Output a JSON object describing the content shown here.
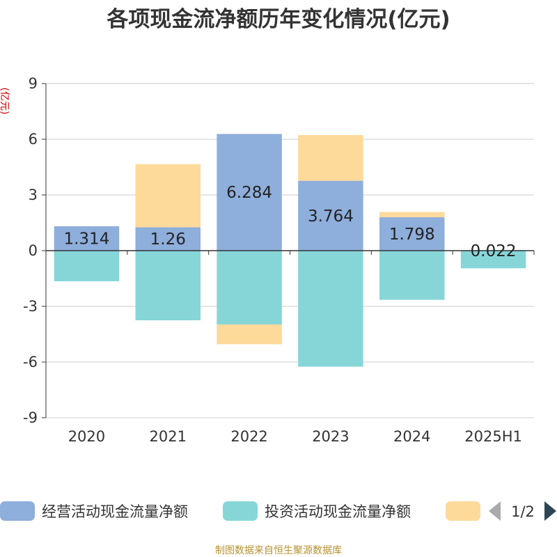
{
  "chart_data": {
    "type": "bar",
    "stacked": true,
    "title": "各项现金流净额历年变化情况(亿元)",
    "ylabel": "(亿元)",
    "xlabel": "",
    "categories": [
      "2020",
      "2021",
      "2022",
      "2023",
      "2024",
      "2025H1"
    ],
    "ylim": [
      -9,
      9
    ],
    "yticks": [
      9,
      6,
      3,
      0,
      -3,
      -6,
      -9
    ],
    "ytick_labels": [
      "9",
      "6",
      "3",
      "0",
      "-3",
      "-6",
      "-9"
    ],
    "grid": true,
    "legend_position": "bottom",
    "series": [
      {
        "name": "经营活动现金流量净额",
        "color": "#8eaedb",
        "values": [
          1.314,
          1.26,
          6.284,
          3.764,
          1.798,
          0.022
        ],
        "data_labels": [
          "1.314",
          "1.26",
          "6.284",
          "3.764",
          "1.798",
          "0.022"
        ]
      },
      {
        "name": "投资活动现金流量净额",
        "color": "#86d6d8",
        "values": [
          -1.65,
          -3.75,
          -3.98,
          -6.25,
          -2.65,
          -0.95
        ]
      },
      {
        "name": "",
        "color": "#fdd99a",
        "values": [
          0,
          3.4,
          -1.06,
          2.46,
          0.28,
          0
        ]
      }
    ]
  },
  "legend": {
    "page_indicator": "1/2",
    "prev_icon": "triangle-left-icon",
    "next_icon": "triangle-right-icon"
  },
  "footer": {
    "source_text": "制图数据来自恒生聚源数据库"
  }
}
